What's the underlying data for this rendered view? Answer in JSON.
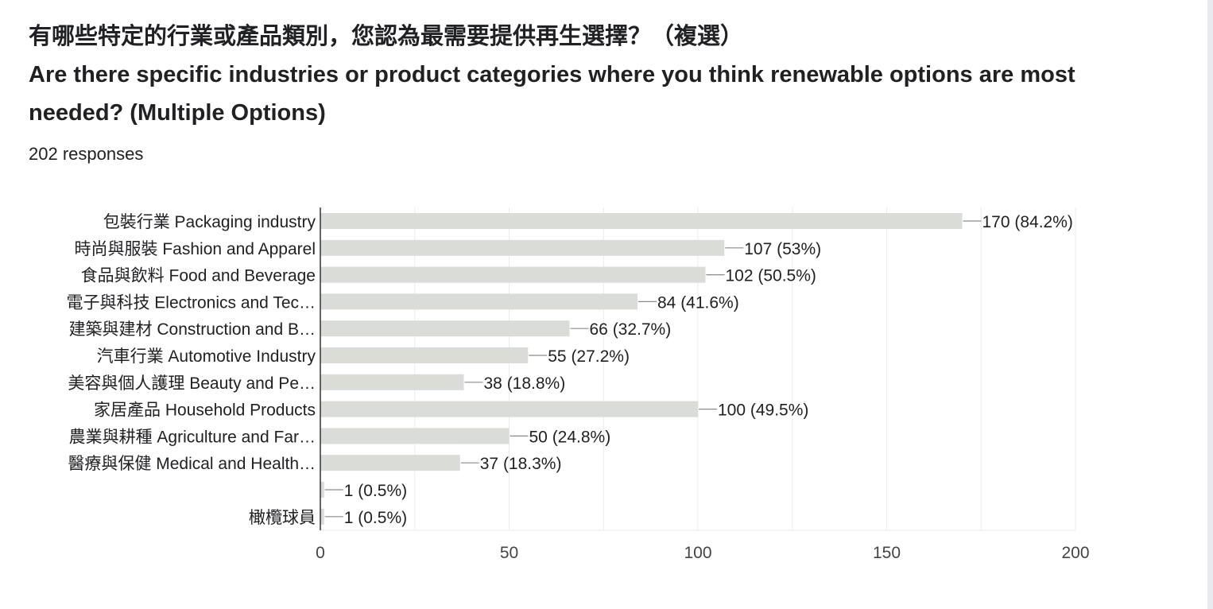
{
  "question": {
    "title_zh": "有哪些特定的行業或產品類別，您認為最需要提供再生選擇？（複選）",
    "title_en_line1": "Are there specific industries or product categories where you think renewable options are most",
    "title_en_line2": "needed? (Multiple Options)",
    "responses": "202 responses"
  },
  "colors": {
    "bar": "#dadcd7",
    "axis": "#333333",
    "grid": "#ebebeb",
    "text": "#202124"
  },
  "chart_data": {
    "type": "bar",
    "orientation": "horizontal",
    "categories": [
      "包裝行業 Packaging industry",
      "時尚與服裝 Fashion and Apparel",
      "食品與飲料 Food and Beverage",
      "電子與科技 Electronics and Tec…",
      "建築與建材 Construction and B…",
      "汽車行業 Automotive Industry",
      "美容與個人護理 Beauty and Pe…",
      "家居產品 Household Products",
      "農業與耕種 Agriculture and Far…",
      "醫療與保健 Medical and Health…",
      "",
      "橄欖球員"
    ],
    "values": [
      170,
      107,
      102,
      84,
      66,
      55,
      38,
      100,
      50,
      37,
      1,
      1
    ],
    "value_labels": [
      "170 (84.2%)",
      "107 (53%)",
      "102 (50.5%)",
      "84 (41.6%)",
      "66 (32.7%)",
      "55 (27.2%)",
      "38 (18.8%)",
      "100 (49.5%)",
      "50 (24.8%)",
      "37 (18.3%)",
      "1 (0.5%)",
      "1 (0.5%)"
    ],
    "xlim": [
      0,
      200
    ],
    "xticks": [
      0,
      50,
      100,
      150,
      200
    ],
    "xtick_labels": [
      "0",
      "50",
      "100",
      "150",
      "200"
    ],
    "grid": true,
    "legend": "none"
  }
}
